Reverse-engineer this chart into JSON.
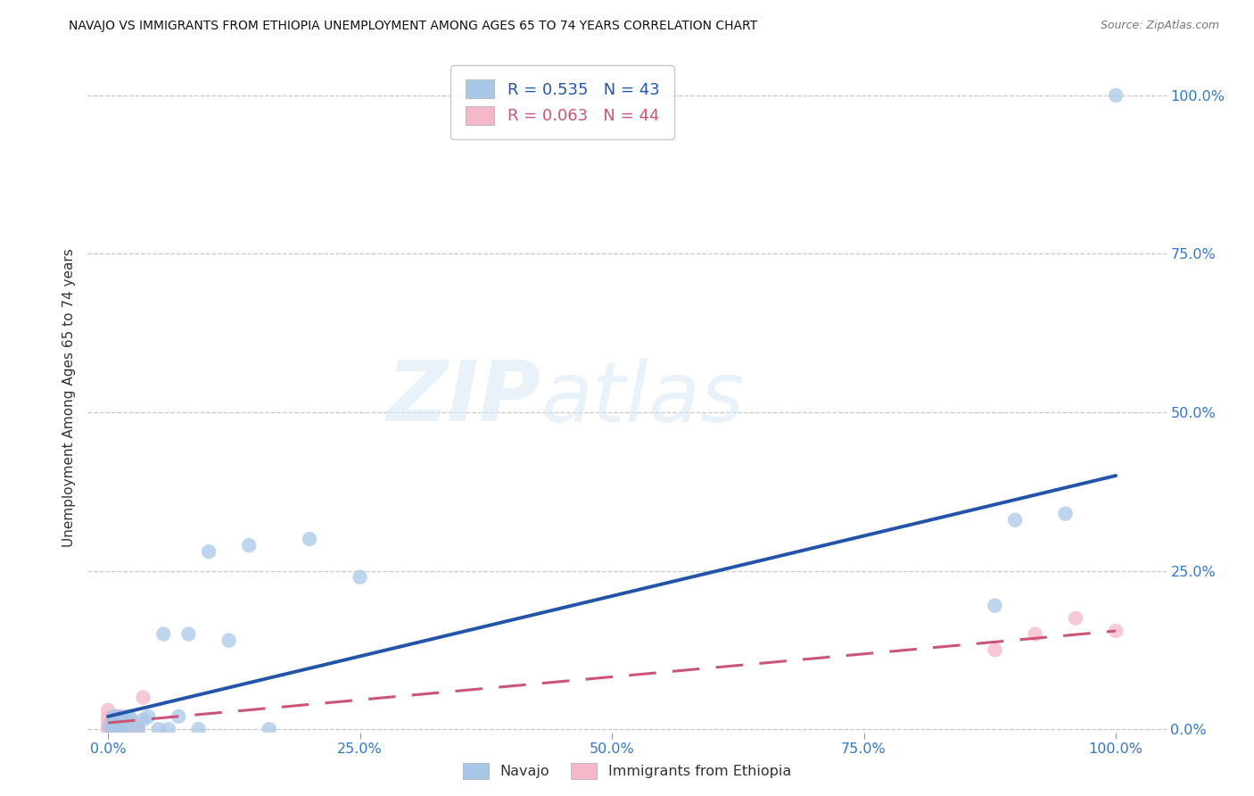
{
  "title": "NAVAJO VS IMMIGRANTS FROM ETHIOPIA UNEMPLOYMENT AMONG AGES 65 TO 74 YEARS CORRELATION CHART",
  "source": "Source: ZipAtlas.com",
  "ylabel": "Unemployment Among Ages 65 to 74 years",
  "watermark_zip": "ZIP",
  "watermark_atlas": "atlas",
  "navajo_R": 0.535,
  "navajo_N": 43,
  "ethiopia_R": 0.063,
  "ethiopia_N": 44,
  "navajo_color": "#a8c8e8",
  "ethiopia_color": "#f5b8c8",
  "navajo_line_color": "#2255aa",
  "ethiopia_line_color": "#cc5577",
  "navajo_x": [
    0.002,
    0.004,
    0.005,
    0.005,
    0.006,
    0.007,
    0.007,
    0.008,
    0.008,
    0.009,
    0.01,
    0.01,
    0.01,
    0.011,
    0.011,
    0.012,
    0.013,
    0.013,
    0.015,
    0.016,
    0.017,
    0.018,
    0.02,
    0.022,
    0.03,
    0.035,
    0.04,
    0.05,
    0.055,
    0.06,
    0.07,
    0.08,
    0.09,
    0.1,
    0.12,
    0.14,
    0.16,
    0.2,
    0.25,
    0.88,
    0.9,
    0.95,
    1.0
  ],
  "navajo_y": [
    0.005,
    0.0,
    0.008,
    0.02,
    0.0,
    0.005,
    0.012,
    0.0,
    0.015,
    0.01,
    0.0,
    0.008,
    0.02,
    0.005,
    0.012,
    0.0,
    0.01,
    0.015,
    0.005,
    0.0,
    0.015,
    0.01,
    0.02,
    0.018,
    0.0,
    0.015,
    0.02,
    0.0,
    0.15,
    0.0,
    0.02,
    0.15,
    0.0,
    0.28,
    0.14,
    0.29,
    0.0,
    0.3,
    0.24,
    0.195,
    0.33,
    0.34,
    1.0
  ],
  "ethiopia_x": [
    0.0,
    0.0,
    0.0,
    0.0,
    0.001,
    0.002,
    0.002,
    0.003,
    0.003,
    0.004,
    0.004,
    0.005,
    0.005,
    0.006,
    0.006,
    0.007,
    0.007,
    0.008,
    0.008,
    0.009,
    0.009,
    0.01,
    0.01,
    0.01,
    0.011,
    0.011,
    0.012,
    0.013,
    0.014,
    0.015,
    0.015,
    0.016,
    0.017,
    0.018,
    0.02,
    0.022,
    0.025,
    0.028,
    0.03,
    0.035,
    0.88,
    0.92,
    0.96,
    1.0
  ],
  "ethiopia_y": [
    0.0,
    0.008,
    0.018,
    0.03,
    0.0,
    0.005,
    0.01,
    0.0,
    0.008,
    0.003,
    0.015,
    0.0,
    0.01,
    0.005,
    0.018,
    0.0,
    0.012,
    0.008,
    0.02,
    0.005,
    0.015,
    0.0,
    0.01,
    0.015,
    0.005,
    0.02,
    0.0,
    0.01,
    0.008,
    0.02,
    0.0,
    0.015,
    0.005,
    0.01,
    0.0,
    0.008,
    0.005,
    0.01,
    0.0,
    0.05,
    0.125,
    0.15,
    0.175,
    0.155
  ],
  "navajo_line_x0": 0.0,
  "navajo_line_y0": 0.02,
  "navajo_line_x1": 1.0,
  "navajo_line_y1": 0.4,
  "ethiopia_line_x0": 0.0,
  "ethiopia_line_y0": 0.01,
  "ethiopia_line_x1": 1.0,
  "ethiopia_line_y1": 0.155,
  "xlim": [
    -0.02,
    1.05
  ],
  "ylim": [
    -0.005,
    1.05
  ],
  "xtick_positions": [
    0.0,
    0.25,
    0.5,
    0.75,
    1.0
  ],
  "xticklabels": [
    "0.0%",
    "25.0%",
    "50.0%",
    "75.0%",
    "100.0%"
  ],
  "ytick_positions": [
    0.0,
    0.25,
    0.5,
    0.75,
    1.0
  ],
  "ytick_labels_right": [
    "0.0%",
    "25.0%",
    "50.0%",
    "75.0%",
    "100.0%"
  ],
  "background_color": "#ffffff",
  "grid_color": "#bbbbbb"
}
